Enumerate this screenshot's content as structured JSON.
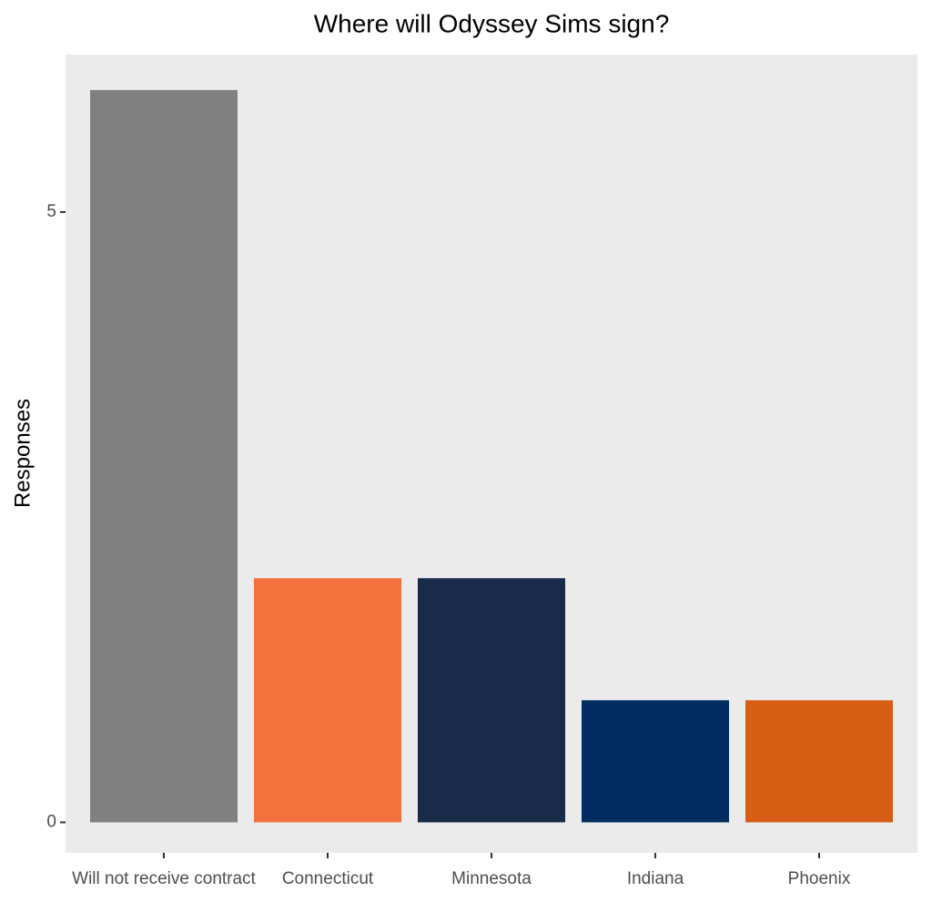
{
  "chart_data": {
    "type": "bar",
    "title": "Where will Odyssey Sims sign?",
    "y_label": "Responses",
    "categories": [
      "Will not receive contract",
      "Connecticut",
      "Minnesota",
      "Indiana",
      "Phoenix"
    ],
    "values": [
      6,
      2,
      2,
      1,
      1
    ],
    "colors": [
      "#808080",
      "#f2713c",
      "#182b49",
      "#002d62",
      "#d55e14"
    ],
    "ylim": [
      -0.25,
      6.29
    ],
    "yticks": [
      0,
      5
    ],
    "grid": false
  }
}
